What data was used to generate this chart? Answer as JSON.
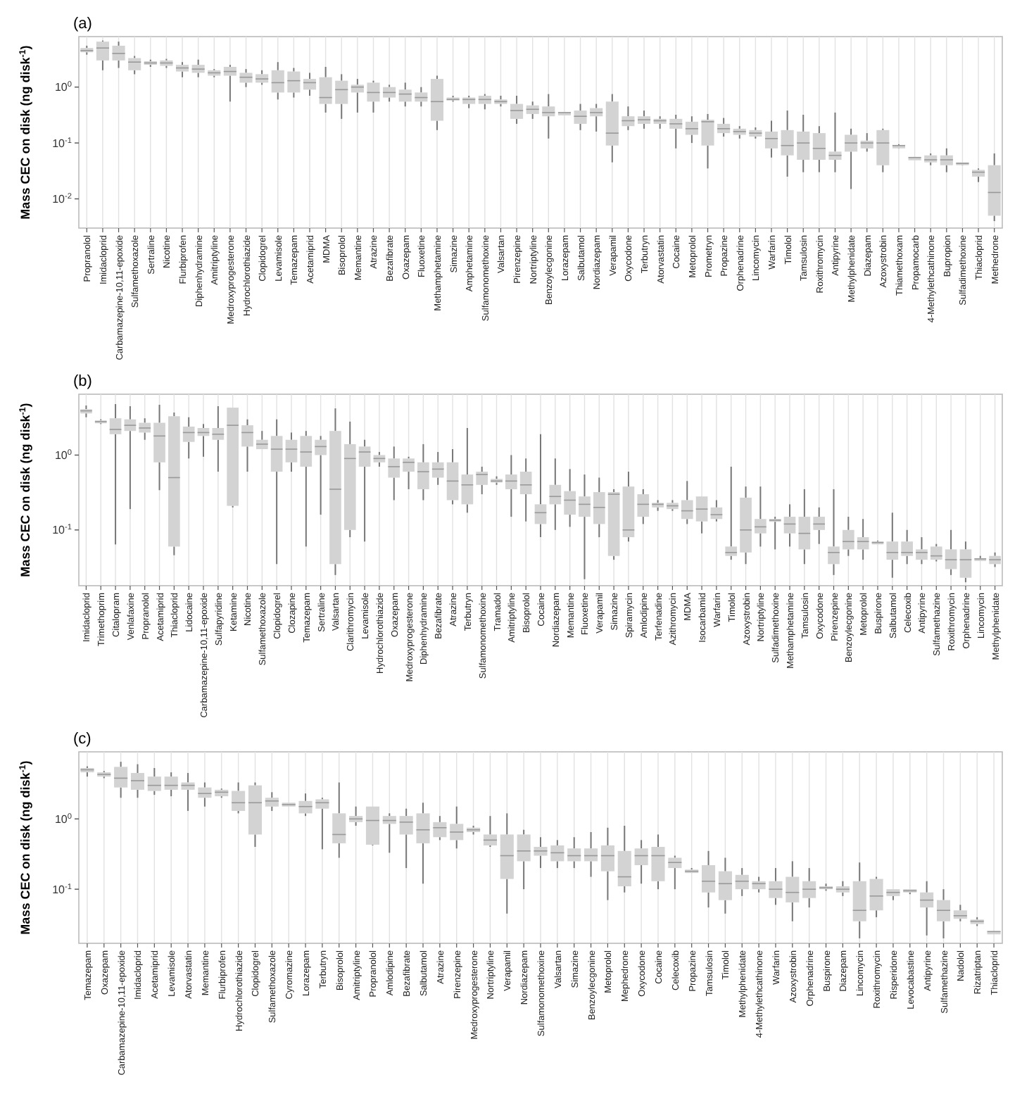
{
  "chart_data": [
    {
      "type": "box",
      "title": "(a)",
      "ylabel": "Mass CEC on disk (ng disk$^{-1}$)",
      "log": "y",
      "grid": "x",
      "ylim": [
        0.003,
        8
      ],
      "yticks": [
        {
          "value": 0.01,
          "label": "10$^{-2}$"
        },
        {
          "value": 0.1,
          "label": "10$^{-1}$"
        },
        {
          "value": 1,
          "label": "10$^{0}$"
        }
      ],
      "categories": [
        "Propranolol",
        "Imidacloprid",
        "Carbamazepine-10,11-epoxide",
        "Sulfamethoxazole",
        "Sertraline",
        "Nicotine",
        "Flurbiprofen",
        "Diphenhydramine",
        "Amitriptyline",
        "Medroxyprogesterone",
        "Hydrochlorothiazide",
        "Clopidogrel",
        "Levamisole",
        "Temazepam",
        "Acetamiprid",
        "MDMA",
        "Bisoprolol",
        "Memantine",
        "Atrazine",
        "Bezafibrate",
        "Oxazepam",
        "Fluoxetine",
        "Methamphetamine",
        "Simazine",
        "Amphetamine",
        "Sulfamonomethoxine",
        "Valsartan",
        "Pirenzepine",
        "Nortriptyline",
        "Benzoylecgonine",
        "Lorazepam",
        "Salbutamol",
        "Nordiazepam",
        "Verapamil",
        "Oxycodone",
        "Terbutryn",
        "Atorvastatin",
        "Cocaine",
        "Metoprolol",
        "Prometryn",
        "Propazine",
        "Orphenadrine",
        "Lincomycin",
        "Warfarin",
        "Timolol",
        "Tamsulosin",
        "Roxithromycin",
        "Antipyrine",
        "Methylphenidate",
        "Diazepam",
        "Azoxystrobin",
        "Thiamethoxam",
        "Propamocarb",
        "4-Methylethcathinone",
        "Bupropion",
        "Sulfadimethoxine",
        "Thiacloprid",
        "Methedrone"
      ],
      "boxes": [
        {
          "low": 3.8,
          "q1": 4.2,
          "median": 4.5,
          "q3": 5,
          "high": 5.5
        },
        {
          "low": 2,
          "q1": 3,
          "median": 5,
          "q3": 6.5,
          "high": 6.8
        },
        {
          "low": 2.2,
          "q1": 3,
          "median": 4,
          "q3": 5.5,
          "high": 6.5
        },
        {
          "low": 1.7,
          "q1": 2,
          "median": 2.8,
          "q3": 3.3,
          "high": 3.6
        },
        {
          "low": 2.3,
          "q1": 2.5,
          "median": 2.7,
          "q3": 2.9,
          "high": 3.1
        },
        {
          "low": 2.2,
          "q1": 2.4,
          "median": 2.7,
          "q3": 3,
          "high": 3.2
        },
        {
          "low": 1.5,
          "q1": 1.9,
          "median": 2.2,
          "q3": 2.5,
          "high": 2.8
        },
        {
          "low": 1.5,
          "q1": 1.8,
          "median": 2.1,
          "q3": 2.5,
          "high": 3.1
        },
        {
          "low": 1.5,
          "q1": 1.6,
          "median": 1.8,
          "q3": 2,
          "high": 2.1
        },
        {
          "low": 0.55,
          "q1": 1.6,
          "median": 1.9,
          "q3": 2.3,
          "high": 2.5
        },
        {
          "low": 1,
          "q1": 1.2,
          "median": 1.5,
          "q3": 1.8,
          "high": 2.1
        },
        {
          "low": 1.1,
          "q1": 1.2,
          "median": 1.4,
          "q3": 1.7,
          "high": 2
        },
        {
          "low": 0.6,
          "q1": 0.8,
          "median": 1.2,
          "q3": 2,
          "high": 2.8
        },
        {
          "low": 0.65,
          "q1": 0.8,
          "median": 1.3,
          "q3": 1.9,
          "high": 2.2
        },
        {
          "low": 0.7,
          "q1": 0.9,
          "median": 1.2,
          "q3": 1.4,
          "high": 1.8
        },
        {
          "low": 0.35,
          "q1": 0.5,
          "median": 0.65,
          "q3": 1.5,
          "high": 2.3
        },
        {
          "low": 0.27,
          "q1": 0.5,
          "median": 0.9,
          "q3": 1.3,
          "high": 1.7
        },
        {
          "low": 0.35,
          "q1": 0.8,
          "median": 1,
          "q3": 1.1,
          "high": 1.4
        },
        {
          "low": 0.35,
          "q1": 0.55,
          "median": 0.8,
          "q3": 1.2,
          "high": 1.3
        },
        {
          "low": 0.55,
          "q1": 0.65,
          "median": 0.8,
          "q3": 1,
          "high": 1.1
        },
        {
          "low": 0.45,
          "q1": 0.55,
          "median": 0.75,
          "q3": 0.9,
          "high": 1.2
        },
        {
          "low": 0.45,
          "q1": 0.55,
          "median": 0.65,
          "q3": 0.8,
          "high": 1
        },
        {
          "low": 0.17,
          "q1": 0.25,
          "median": 0.55,
          "q3": 1.4,
          "high": 1.6
        },
        {
          "low": 0.55,
          "q1": 0.58,
          "median": 0.6,
          "q3": 0.65,
          "high": 0.7
        },
        {
          "low": 0.42,
          "q1": 0.5,
          "median": 0.6,
          "q3": 0.65,
          "high": 0.7
        },
        {
          "low": 0.4,
          "q1": 0.5,
          "median": 0.6,
          "q3": 0.7,
          "high": 0.75
        },
        {
          "low": 0.45,
          "q1": 0.5,
          "median": 0.55,
          "q3": 0.6,
          "high": 0.7
        },
        {
          "low": 0.22,
          "q1": 0.27,
          "median": 0.38,
          "q3": 0.5,
          "high": 0.7
        },
        {
          "low": 0.27,
          "q1": 0.33,
          "median": 0.4,
          "q3": 0.47,
          "high": 0.55
        },
        {
          "low": 0.12,
          "q1": 0.3,
          "median": 0.35,
          "q3": 0.45,
          "high": 0.75
        },
        {
          "low": 0.35,
          "q1": 0.35,
          "median": 0.35,
          "q3": 0.35,
          "high": 0.35
        },
        {
          "low": 0.17,
          "q1": 0.22,
          "median": 0.3,
          "q3": 0.38,
          "high": 0.5
        },
        {
          "low": 0.16,
          "q1": 0.3,
          "median": 0.35,
          "q3": 0.42,
          "high": 0.5
        },
        {
          "low": 0.045,
          "q1": 0.09,
          "median": 0.15,
          "q3": 0.55,
          "high": 0.75
        },
        {
          "low": 0.17,
          "q1": 0.2,
          "median": 0.25,
          "q3": 0.3,
          "high": 0.45
        },
        {
          "low": 0.18,
          "q1": 0.22,
          "median": 0.26,
          "q3": 0.3,
          "high": 0.38
        },
        {
          "low": 0.18,
          "q1": 0.22,
          "median": 0.25,
          "q3": 0.27,
          "high": 0.3
        },
        {
          "low": 0.08,
          "q1": 0.18,
          "median": 0.22,
          "q3": 0.27,
          "high": 0.32
        },
        {
          "low": 0.1,
          "q1": 0.14,
          "median": 0.18,
          "q3": 0.24,
          "high": 0.3
        },
        {
          "low": 0.035,
          "q1": 0.09,
          "median": 0.24,
          "q3": 0.26,
          "high": 0.33
        },
        {
          "low": 0.13,
          "q1": 0.15,
          "median": 0.18,
          "q3": 0.22,
          "high": 0.28
        },
        {
          "low": 0.12,
          "q1": 0.14,
          "median": 0.16,
          "q3": 0.18,
          "high": 0.2
        },
        {
          "low": 0.12,
          "q1": 0.13,
          "median": 0.15,
          "q3": 0.17,
          "high": 0.19
        },
        {
          "low": 0.055,
          "q1": 0.08,
          "median": 0.12,
          "q3": 0.16,
          "high": 0.25
        },
        {
          "low": 0.025,
          "q1": 0.06,
          "median": 0.09,
          "q3": 0.17,
          "high": 0.38
        },
        {
          "low": 0.03,
          "q1": 0.05,
          "median": 0.1,
          "q3": 0.16,
          "high": 0.32
        },
        {
          "low": 0.03,
          "q1": 0.05,
          "median": 0.08,
          "q3": 0.15,
          "high": 0.2
        },
        {
          "low": 0.03,
          "q1": 0.05,
          "median": 0.06,
          "q3": 0.07,
          "high": 0.35
        },
        {
          "low": 0.015,
          "q1": 0.07,
          "median": 0.1,
          "q3": 0.14,
          "high": 0.18
        },
        {
          "low": 0.07,
          "q1": 0.08,
          "median": 0.1,
          "q3": 0.11,
          "high": 0.15
        },
        {
          "low": 0.03,
          "q1": 0.04,
          "median": 0.1,
          "q3": 0.17,
          "high": 0.18
        },
        {
          "low": 0.08,
          "q1": 0.085,
          "median": 0.09,
          "q3": 0.09,
          "high": 0.095
        },
        {
          "low": 0.055,
          "q1": 0.055,
          "median": 0.055,
          "q3": 0.055,
          "high": 0.055
        },
        {
          "low": 0.04,
          "q1": 0.045,
          "median": 0.05,
          "q3": 0.06,
          "high": 0.065
        },
        {
          "low": 0.03,
          "q1": 0.04,
          "median": 0.05,
          "q3": 0.06,
          "high": 0.08
        },
        {
          "low": 0.04,
          "q1": 0.042,
          "median": 0.043,
          "q3": 0.045,
          "high": 0.045
        },
        {
          "low": 0.02,
          "q1": 0.025,
          "median": 0.03,
          "q3": 0.033,
          "high": 0.035
        },
        {
          "low": 0.004,
          "q1": 0.005,
          "median": 0.013,
          "q3": 0.04,
          "high": 0.065
        }
      ]
    },
    {
      "type": "box",
      "title": "(b)",
      "ylabel": "Mass CEC on disk (ng disk$^{-1}$)",
      "log": "y",
      "grid": "x",
      "ylim": [
        0.018,
        6.5
      ],
      "yticks": [
        {
          "value": 0.1,
          "label": "10$^{-1}$"
        },
        {
          "value": 1,
          "label": "10$^{0}$"
        }
      ],
      "categories": [
        "Imidacloprid",
        "Trimethoprim",
        "Citalopram",
        "Venlafaxine",
        "Propranolol",
        "Acetamiprid",
        "Thiacloprid",
        "Lidocaine",
        "Carbamazepine-10,11-epoxide",
        "Sulfapyridine",
        "Ketamine",
        "Nicotine",
        "Sulfamethoxazole",
        "Clopidogrel",
        "Clozapine",
        "Temazepam",
        "Sertraline",
        "Valsartan",
        "Clarithromycin",
        "Levamisole",
        "Hydrochlorothiazide",
        "Oxazepam",
        "Medroxyprogesterone",
        "Diphenhydramine",
        "Bezafibrate",
        "Atrazine",
        "Terbutryn",
        "Sulfamonomethoxine",
        "Tramadol",
        "Amitriptyline",
        "Bisoprolol",
        "Cocaine",
        "Nordiazepam",
        "Memantine",
        "Fluoxetine",
        "Verapamil",
        "Simazine",
        "Spiramycin",
        "Amlodipine",
        "Terfenadine",
        "Azithromycin",
        "MDMA",
        "Isocarbamid",
        "Warfarin",
        "Timolol",
        "Azoxystrobin",
        "Nortriptyline",
        "Sulfadimethoxine",
        "Methamphetamine",
        "Tamsulosin",
        "Oxycodone",
        "Pirenzepine",
        "Benzoylecgonine",
        "Metoprolol",
        "Buspirone",
        "Salbutamol",
        "Celecoxib",
        "Antipyrine",
        "Sulfamethazine",
        "Roxithromycin",
        "Orphenadrine",
        "Lincomycin",
        "Methylphenidate"
      ],
      "boxes": [
        {
          "low": 3.2,
          "q1": 3.6,
          "median": 3.9,
          "q3": 4.1,
          "high": 4.6
        },
        {
          "low": 2.6,
          "q1": 2.7,
          "median": 2.8,
          "q3": 2.9,
          "high": 3
        },
        {
          "low": 0.064,
          "q1": 1.9,
          "median": 2.2,
          "q3": 3.1,
          "high": 4.8
        },
        {
          "low": 0.19,
          "q1": 2.1,
          "median": 2.5,
          "q3": 3,
          "high": 4.5
        },
        {
          "low": 1.6,
          "q1": 2,
          "median": 2.3,
          "q3": 2.7,
          "high": 3.1
        },
        {
          "low": 0.34,
          "q1": 0.8,
          "median": 1.8,
          "q3": 2.7,
          "high": 4.7
        },
        {
          "low": 0.046,
          "q1": 0.06,
          "median": 0.5,
          "q3": 3.3,
          "high": 3.7
        },
        {
          "low": 0.9,
          "q1": 1.5,
          "median": 2,
          "q3": 2.4,
          "high": 3.2
        },
        {
          "low": 0.95,
          "q1": 1.8,
          "median": 2,
          "q3": 2.3,
          "high": 2.6
        },
        {
          "low": 0.6,
          "q1": 1.6,
          "median": 1.9,
          "q3": 2.3,
          "high": 4.5
        },
        {
          "low": 0.2,
          "q1": 0.21,
          "median": 2.5,
          "q3": 4.3,
          "high": 4.3
        },
        {
          "low": 0.6,
          "q1": 1.3,
          "median": 2,
          "q3": 2.5,
          "high": 3
        },
        {
          "low": 1.2,
          "q1": 1.2,
          "median": 1.4,
          "q3": 1.6,
          "high": 2.1
        },
        {
          "low": 0.035,
          "q1": 0.6,
          "median": 1.2,
          "q3": 1.8,
          "high": 3
        },
        {
          "low": 0.6,
          "q1": 0.8,
          "median": 1.2,
          "q3": 1.6,
          "high": 2
        },
        {
          "low": 0.06,
          "q1": 0.7,
          "median": 1.1,
          "q3": 1.8,
          "high": 2.1
        },
        {
          "low": 0.16,
          "q1": 1,
          "median": 1.3,
          "q3": 1.6,
          "high": 1.8
        },
        {
          "low": 0.025,
          "q1": 0.035,
          "median": 0.35,
          "q3": 2.1,
          "high": 4.2
        },
        {
          "low": 0.08,
          "q1": 0.1,
          "median": 0.9,
          "q3": 1.4,
          "high": 2.8
        },
        {
          "low": 0.07,
          "q1": 0.7,
          "median": 1.1,
          "q3": 1.3,
          "high": 1.6
        },
        {
          "low": 0.7,
          "q1": 0.8,
          "median": 0.9,
          "q3": 1,
          "high": 1.1
        },
        {
          "low": 0.25,
          "q1": 0.5,
          "median": 0.7,
          "q3": 0.9,
          "high": 1.3
        },
        {
          "low": 0.35,
          "q1": 0.6,
          "median": 0.8,
          "q3": 0.9,
          "high": 0.95
        },
        {
          "low": 0.25,
          "q1": 0.35,
          "median": 0.6,
          "q3": 0.8,
          "high": 1.4
        },
        {
          "low": 0.4,
          "q1": 0.5,
          "median": 0.65,
          "q3": 0.8,
          "high": 1.1
        },
        {
          "low": 0.22,
          "q1": 0.25,
          "median": 0.45,
          "q3": 0.8,
          "high": 1.2
        },
        {
          "low": 0.17,
          "q1": 0.22,
          "median": 0.4,
          "q3": 0.55,
          "high": 2.3
        },
        {
          "low": 0.3,
          "q1": 0.4,
          "median": 0.55,
          "q3": 0.6,
          "high": 0.7
        },
        {
          "low": 0.4,
          "q1": 0.43,
          "median": 0.45,
          "q3": 0.48,
          "high": 0.52
        },
        {
          "low": 0.15,
          "q1": 0.35,
          "median": 0.45,
          "q3": 0.55,
          "high": 1
        },
        {
          "low": 0.13,
          "q1": 0.3,
          "median": 0.4,
          "q3": 0.6,
          "high": 0.9
        },
        {
          "low": 0.08,
          "q1": 0.12,
          "median": 0.17,
          "q3": 0.22,
          "high": 1.9
        },
        {
          "low": 0.1,
          "q1": 0.22,
          "median": 0.28,
          "q3": 0.4,
          "high": 0.9
        },
        {
          "low": 0.11,
          "q1": 0.16,
          "median": 0.25,
          "q3": 0.33,
          "high": 0.65
        },
        {
          "low": 0.022,
          "q1": 0.15,
          "median": 0.22,
          "q3": 0.28,
          "high": 0.55
        },
        {
          "low": 0.08,
          "q1": 0.12,
          "median": 0.2,
          "q3": 0.32,
          "high": 0.5
        },
        {
          "low": 0.04,
          "q1": 0.045,
          "median": 0.3,
          "q3": 0.32,
          "high": 0.35
        },
        {
          "low": 0.07,
          "q1": 0.08,
          "median": 0.1,
          "q3": 0.38,
          "high": 0.6
        },
        {
          "low": 0.12,
          "q1": 0.15,
          "median": 0.22,
          "q3": 0.3,
          "high": 0.35
        },
        {
          "low": 0.18,
          "q1": 0.2,
          "median": 0.22,
          "q3": 0.23,
          "high": 0.25
        },
        {
          "low": 0.18,
          "q1": 0.19,
          "median": 0.21,
          "q3": 0.23,
          "high": 0.25
        },
        {
          "low": 0.12,
          "q1": 0.14,
          "median": 0.18,
          "q3": 0.25,
          "high": 0.45
        },
        {
          "low": 0.09,
          "q1": 0.13,
          "median": 0.19,
          "q3": 0.28,
          "high": 0.28
        },
        {
          "low": 0.13,
          "q1": 0.14,
          "median": 0.16,
          "q3": 0.2,
          "high": 0.25
        },
        {
          "low": 0.04,
          "q1": 0.045,
          "median": 0.05,
          "q3": 0.06,
          "high": 0.7
        },
        {
          "low": 0.035,
          "q1": 0.05,
          "median": 0.1,
          "q3": 0.27,
          "high": 0.38
        },
        {
          "low": 0.06,
          "q1": 0.09,
          "median": 0.11,
          "q3": 0.14,
          "high": 0.38
        },
        {
          "low": 0.055,
          "q1": 0.13,
          "median": 0.135,
          "q3": 0.14,
          "high": 0.15
        },
        {
          "low": 0.06,
          "q1": 0.09,
          "median": 0.12,
          "q3": 0.15,
          "high": 0.22
        },
        {
          "low": 0.035,
          "q1": 0.055,
          "median": 0.09,
          "q3": 0.15,
          "high": 0.35
        },
        {
          "low": 0.065,
          "q1": 0.1,
          "median": 0.12,
          "q3": 0.15,
          "high": 0.2
        },
        {
          "low": 0.025,
          "q1": 0.035,
          "median": 0.05,
          "q3": 0.06,
          "high": 0.35
        },
        {
          "low": 0.045,
          "q1": 0.055,
          "median": 0.07,
          "q3": 0.1,
          "high": 0.15
        },
        {
          "low": 0.04,
          "q1": 0.055,
          "median": 0.07,
          "q3": 0.08,
          "high": 0.14
        },
        {
          "low": 0.065,
          "q1": 0.066,
          "median": 0.068,
          "q3": 0.07,
          "high": 0.072
        },
        {
          "low": 0.023,
          "q1": 0.04,
          "median": 0.05,
          "q3": 0.07,
          "high": 0.17
        },
        {
          "low": 0.035,
          "q1": 0.045,
          "median": 0.05,
          "q3": 0.07,
          "high": 0.1
        },
        {
          "low": 0.035,
          "q1": 0.04,
          "median": 0.05,
          "q3": 0.055,
          "high": 0.08
        },
        {
          "low": 0.038,
          "q1": 0.04,
          "median": 0.045,
          "q3": 0.06,
          "high": 0.065
        },
        {
          "low": 0.025,
          "q1": 0.03,
          "median": 0.04,
          "q3": 0.055,
          "high": 0.1
        },
        {
          "low": 0.02,
          "q1": 0.023,
          "median": 0.04,
          "q3": 0.055,
          "high": 0.07
        },
        {
          "low": 0.04,
          "q1": 0.04,
          "median": 0.041,
          "q3": 0.042,
          "high": 0.045
        },
        {
          "low": 0.032,
          "q1": 0.035,
          "median": 0.04,
          "q3": 0.045,
          "high": 0.05
        }
      ]
    },
    {
      "type": "box",
      "title": "(c)",
      "ylabel": "Mass CEC on disk (ng disk$^{-1}$)",
      "log": "y",
      "grid": "x",
      "ylim": [
        0.017,
        9
      ],
      "yticks": [
        {
          "value": 0.1,
          "label": "10$^{-1}$"
        },
        {
          "value": 1,
          "label": "10$^{0}$"
        }
      ],
      "categories": [
        "Temazepam",
        "Oxazepam",
        "Carbamazepine-10,11-epoxide",
        "Imidacloprid",
        "Acetamiprid",
        "Levamisole",
        "Atorvastatin",
        "Memantine",
        "Flurbiprofen",
        "Hydrochlorothiazide",
        "Clopidogrel",
        "Sulfamethoxazole",
        "Cyromazine",
        "Lorazepam",
        "Terbutryn",
        "Bisoprolol",
        "Amitriptyline",
        "Propranolol",
        "Amlodipine",
        "Bezafibrate",
        "Salbutamol",
        "Atrazine",
        "Pirenzepine",
        "Medroxyprogesterone",
        "Nortriptyline",
        "Verapamil",
        "Nordiazepam",
        "Sulfamonomethoxine",
        "Valsartan",
        "Simazine",
        "Benzoylecgonine",
        "Metoprolol",
        "Mephedrone",
        "Oxycodone",
        "Cocaine",
        "Celecoxib",
        "Propazine",
        "Tamsulosin",
        "Timolol",
        "Methylphenidate",
        "4-Methylethcathinone",
        "Warfarin",
        "Azoxystrobin",
        "Orphenadrine",
        "Buspirone",
        "Diazepam",
        "Lincomycin",
        "Roxithromycin",
        "Risperidone",
        "Levocabastine",
        "Antipyrine",
        "Sulfamethazine",
        "Nadolol",
        "Rizatriptan",
        "Thiacloprid"
      ],
      "boxes": [
        {
          "low": 4,
          "q1": 4.6,
          "median": 5,
          "q3": 5.3,
          "high": 5.6
        },
        {
          "low": 3.8,
          "q1": 4,
          "median": 4.3,
          "q3": 4.6,
          "high": 4.8
        },
        {
          "low": 2,
          "q1": 2.8,
          "median": 3.8,
          "q3": 5.5,
          "high": 6.5
        },
        {
          "low": 2,
          "q1": 2.6,
          "median": 3.5,
          "q3": 4.5,
          "high": 6
        },
        {
          "low": 2.2,
          "q1": 2.5,
          "median": 3,
          "q3": 4,
          "high": 5.3
        },
        {
          "low": 2.1,
          "q1": 2.6,
          "median": 3,
          "q3": 4,
          "high": 4.6
        },
        {
          "low": 1.3,
          "q1": 2.6,
          "median": 3,
          "q3": 3.3,
          "high": 4.5
        },
        {
          "low": 1.5,
          "q1": 2,
          "median": 2.3,
          "q3": 2.8,
          "high": 3.3
        },
        {
          "low": 2,
          "q1": 2.1,
          "median": 2.4,
          "q3": 2.6,
          "high": 2.7
        },
        {
          "low": 1.2,
          "q1": 1.3,
          "median": 1.7,
          "q3": 2.5,
          "high": 3.3
        },
        {
          "low": 0.4,
          "q1": 0.6,
          "median": 1.7,
          "q3": 3,
          "high": 3.3
        },
        {
          "low": 1.3,
          "q1": 1.5,
          "median": 1.8,
          "q3": 2,
          "high": 2.4
        },
        {
          "low": 1.5,
          "q1": 1.5,
          "median": 1.6,
          "q3": 1.7,
          "high": 1.7
        },
        {
          "low": 1.1,
          "q1": 1.2,
          "median": 1.5,
          "q3": 1.8,
          "high": 2.3
        },
        {
          "low": 0.37,
          "q1": 1.4,
          "median": 1.7,
          "q3": 1.9,
          "high": 2
        },
        {
          "low": 0.28,
          "q1": 0.45,
          "median": 0.6,
          "q3": 1.2,
          "high": 3.3
        },
        {
          "low": 0.8,
          "q1": 0.9,
          "median": 1,
          "q3": 1.1,
          "high": 1.5
        },
        {
          "low": 0.42,
          "q1": 0.43,
          "median": 0.95,
          "q3": 1.5,
          "high": 1.5
        },
        {
          "low": 0.33,
          "q1": 0.85,
          "median": 0.95,
          "q3": 1.1,
          "high": 1.2
        },
        {
          "low": 0.2,
          "q1": 0.6,
          "median": 0.9,
          "q3": 1.1,
          "high": 1.4
        },
        {
          "low": 0.12,
          "q1": 0.45,
          "median": 0.7,
          "q3": 1.2,
          "high": 1.7
        },
        {
          "low": 0.5,
          "q1": 0.55,
          "median": 0.75,
          "q3": 0.9,
          "high": 1.1
        },
        {
          "low": 0.38,
          "q1": 0.5,
          "median": 0.65,
          "q3": 0.85,
          "high": 1.5
        },
        {
          "low": 0.6,
          "q1": 0.65,
          "median": 0.7,
          "q3": 0.75,
          "high": 0.8
        },
        {
          "low": 0.4,
          "q1": 0.42,
          "median": 0.5,
          "q3": 0.6,
          "high": 1.1
        },
        {
          "low": 0.045,
          "q1": 0.14,
          "median": 0.3,
          "q3": 0.6,
          "high": 1.2
        },
        {
          "low": 0.1,
          "q1": 0.25,
          "median": 0.35,
          "q3": 0.6,
          "high": 0.7
        },
        {
          "low": 0.2,
          "q1": 0.3,
          "median": 0.35,
          "q3": 0.4,
          "high": 0.55
        },
        {
          "low": 0.2,
          "q1": 0.25,
          "median": 0.33,
          "q3": 0.42,
          "high": 0.5
        },
        {
          "low": 0.2,
          "q1": 0.25,
          "median": 0.3,
          "q3": 0.38,
          "high": 0.55
        },
        {
          "low": 0.15,
          "q1": 0.25,
          "median": 0.3,
          "q3": 0.38,
          "high": 0.65
        },
        {
          "low": 0.07,
          "q1": 0.18,
          "median": 0.3,
          "q3": 0.42,
          "high": 0.75
        },
        {
          "low": 0.09,
          "q1": 0.11,
          "median": 0.15,
          "q3": 0.35,
          "high": 0.8
        },
        {
          "low": 0.12,
          "q1": 0.22,
          "median": 0.3,
          "q3": 0.38,
          "high": 0.5
        },
        {
          "low": 0.1,
          "q1": 0.13,
          "median": 0.3,
          "q3": 0.4,
          "high": 0.6
        },
        {
          "low": 0.1,
          "q1": 0.2,
          "median": 0.24,
          "q3": 0.28,
          "high": 0.3
        },
        {
          "low": 0.17,
          "q1": 0.17,
          "median": 0.18,
          "q3": 0.19,
          "high": 0.2
        },
        {
          "low": 0.055,
          "q1": 0.09,
          "median": 0.13,
          "q3": 0.22,
          "high": 0.35
        },
        {
          "low": 0.045,
          "q1": 0.07,
          "median": 0.12,
          "q3": 0.18,
          "high": 0.28
        },
        {
          "low": 0.08,
          "q1": 0.1,
          "median": 0.13,
          "q3": 0.16,
          "high": 0.2
        },
        {
          "low": 0.09,
          "q1": 0.1,
          "median": 0.12,
          "q3": 0.13,
          "high": 0.15
        },
        {
          "low": 0.06,
          "q1": 0.075,
          "median": 0.1,
          "q3": 0.13,
          "high": 0.2
        },
        {
          "low": 0.035,
          "q1": 0.065,
          "median": 0.09,
          "q3": 0.15,
          "high": 0.25
        },
        {
          "low": 0.055,
          "q1": 0.075,
          "median": 0.1,
          "q3": 0.13,
          "high": 0.2
        },
        {
          "low": 0.095,
          "q1": 0.1,
          "median": 0.105,
          "q3": 0.11,
          "high": 0.12
        },
        {
          "low": 0.08,
          "q1": 0.09,
          "median": 0.1,
          "q3": 0.11,
          "high": 0.13
        },
        {
          "low": 0.02,
          "q1": 0.035,
          "median": 0.05,
          "q3": 0.13,
          "high": 0.24
        },
        {
          "low": 0.04,
          "q1": 0.05,
          "median": 0.08,
          "q3": 0.14,
          "high": 0.15
        },
        {
          "low": 0.07,
          "q1": 0.08,
          "median": 0.09,
          "q3": 0.1,
          "high": 0.1
        },
        {
          "low": 0.085,
          "q1": 0.09,
          "median": 0.095,
          "q3": 0.1,
          "high": 0.1
        },
        {
          "low": 0.022,
          "q1": 0.055,
          "median": 0.07,
          "q3": 0.09,
          "high": 0.13
        },
        {
          "low": 0.02,
          "q1": 0.035,
          "median": 0.05,
          "q3": 0.07,
          "high": 0.1
        },
        {
          "low": 0.035,
          "q1": 0.038,
          "median": 0.042,
          "q3": 0.05,
          "high": 0.06
        },
        {
          "low": 0.03,
          "q1": 0.032,
          "median": 0.035,
          "q3": 0.037,
          "high": 0.04
        },
        {
          "low": 0.025,
          "q1": 0.025,
          "median": 0.025,
          "q3": 0.025,
          "high": 0.025
        }
      ]
    }
  ]
}
